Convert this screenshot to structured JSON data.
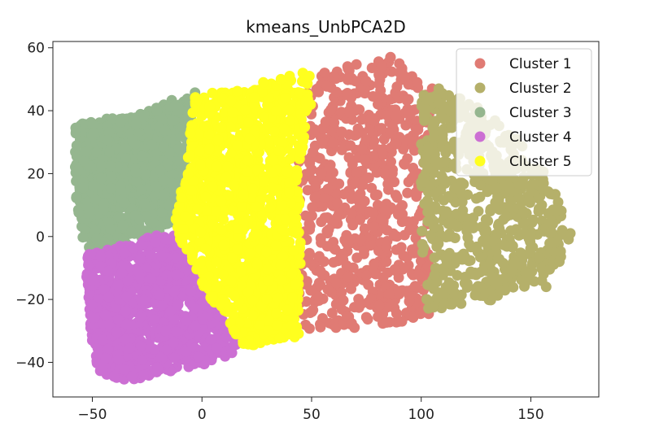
{
  "chart_data": {
    "type": "scatter",
    "title": "kmeans_UnbPCA2D",
    "xlabel": "",
    "ylabel": "",
    "xlim": [
      -68,
      181
    ],
    "ylim": [
      -51,
      62
    ],
    "xticks": [
      -50,
      0,
      50,
      100,
      150
    ],
    "yticks": [
      -40,
      -20,
      0,
      20,
      40,
      60
    ],
    "grid": false,
    "legend": "top-right",
    "series": [
      {
        "name": "Cluster 1",
        "color": "#e07b74",
        "regions": [
          {
            "polygon": [
              [
                44,
                51
              ],
              [
                58,
                53
              ],
              [
                86,
                57
              ],
              [
                100,
                49
              ],
              [
                104,
                47
              ],
              [
                104,
                -25
              ],
              [
                85,
                -28
              ],
              [
                70,
                -29
              ],
              [
                55,
                -30
              ],
              [
                45,
                -33
              ],
              [
                42,
                10
              ],
              [
                44,
                30
              ]
            ],
            "count": 700
          }
        ],
        "outliers": [
          [
            86,
            57
          ],
          [
            90,
            55
          ],
          [
            82,
            54
          ],
          [
            56,
            52
          ],
          [
            105,
            47
          ],
          [
            102,
            45
          ]
        ]
      },
      {
        "name": "Cluster 2",
        "color": "#b5b06a",
        "regions": [
          {
            "polygon": [
              [
                100,
                47
              ],
              [
                115,
                45
              ],
              [
                130,
                40
              ],
              [
                145,
                30
              ],
              [
                160,
                18
              ],
              [
                168,
                0
              ],
              [
                158,
                -15
              ],
              [
                140,
                -20
              ],
              [
                120,
                -22
              ],
              [
                103,
                -24
              ],
              [
                100,
                0
              ],
              [
                100,
                30
              ]
            ],
            "count": 650
          }
        ],
        "outliers": [
          [
            168,
            1
          ],
          [
            160,
            4
          ],
          [
            163,
            -8
          ],
          [
            155,
            10
          ],
          [
            157,
            -16
          ],
          [
            108,
            47
          ]
        ]
      },
      {
        "name": "Cluster 3",
        "color": "#95b68f",
        "regions": [
          {
            "polygon": [
              [
                -58,
                36
              ],
              [
                -50,
                37
              ],
              [
                -35,
                38
              ],
              [
                -20,
                42
              ],
              [
                -3,
                46
              ],
              [
                -8,
                20
              ],
              [
                -14,
                3
              ],
              [
                -28,
                -1
              ],
              [
                -42,
                -4
              ],
              [
                -53,
                -6
              ],
              [
                -58,
                15
              ]
            ],
            "count": 1100
          }
        ],
        "outliers": []
      },
      {
        "name": "Cluster 4",
        "color": "#cc6fd3",
        "regions": [
          {
            "polygon": [
              [
                -53,
                -5
              ],
              [
                -42,
                -4
              ],
              [
                -28,
                -1
              ],
              [
                -14,
                2
              ],
              [
                -5,
                -8
              ],
              [
                5,
                -20
              ],
              [
                18,
                -36
              ],
              [
                5,
                -40
              ],
              [
                -15,
                -43
              ],
              [
                -35,
                -46
              ],
              [
                -48,
                -43
              ],
              [
                -52,
                -25
              ]
            ],
            "count": 1100
          }
        ],
        "outliers": []
      },
      {
        "name": "Cluster 5",
        "color": "#ffff1f",
        "regions": [
          {
            "polygon": [
              [
                -3,
                46
              ],
              [
                20,
                47
              ],
              [
                48,
                52
              ],
              [
                50,
                40
              ],
              [
                45,
                25
              ],
              [
                45,
                5
              ],
              [
                45,
                -20
              ],
              [
                44,
                -32
              ],
              [
                30,
                -33
              ],
              [
                20,
                -36
              ],
              [
                5,
                -22
              ],
              [
                -13,
                2
              ],
              [
                -8,
                20
              ]
            ],
            "count": 1300
          }
        ],
        "outliers": [
          [
            28,
            49
          ],
          [
            36,
            50
          ],
          [
            40,
            51
          ],
          [
            46,
            52
          ],
          [
            49,
            51
          ],
          [
            38,
            44
          ],
          [
            45,
            39
          ]
        ]
      }
    ]
  }
}
